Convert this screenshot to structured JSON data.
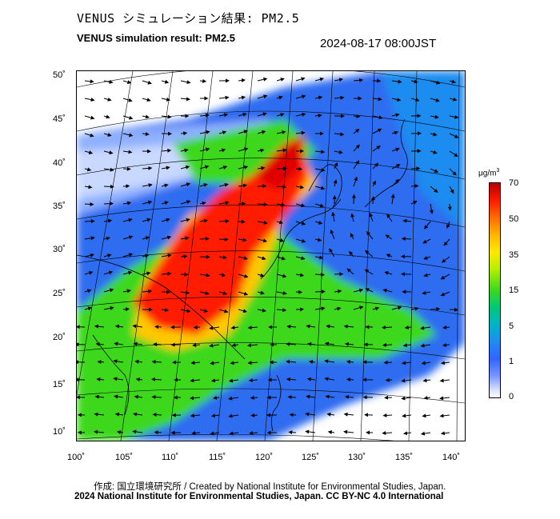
{
  "header": {
    "title_jp": "VENUS シミュレーション結果: PM2.5",
    "title_en": "VENUS simulation result: PM2.5",
    "timestamp": "2024-08-17 08:00JST"
  },
  "map": {
    "lat_labels": [
      "50˚",
      "45˚",
      "40˚",
      "35˚",
      "30˚",
      "25˚",
      "20˚",
      "15˚",
      "10˚"
    ],
    "lon_labels": [
      "100˚",
      "105˚",
      "110˚",
      "115˚",
      "120˚",
      "125˚",
      "130˚",
      "135˚",
      "140˚"
    ]
  },
  "colorbar": {
    "unit_base": "μg/m",
    "unit_exp": "3",
    "ticks": [
      "70",
      "50",
      "35",
      "15",
      "5",
      "1",
      "0"
    ],
    "colors": {
      "high": "#ff1a00",
      "mid": "#3cd81e",
      "low": "#3264ff",
      "zero": "#ffffff"
    }
  },
  "footer": {
    "credit": "作成: 国立環境研究所 / Created by National Institute for Environmental Studies, Japan.",
    "copyright": "2024 National Institute for Environmental Studies, Japan. CC BY-NC 4.0 International"
  }
}
